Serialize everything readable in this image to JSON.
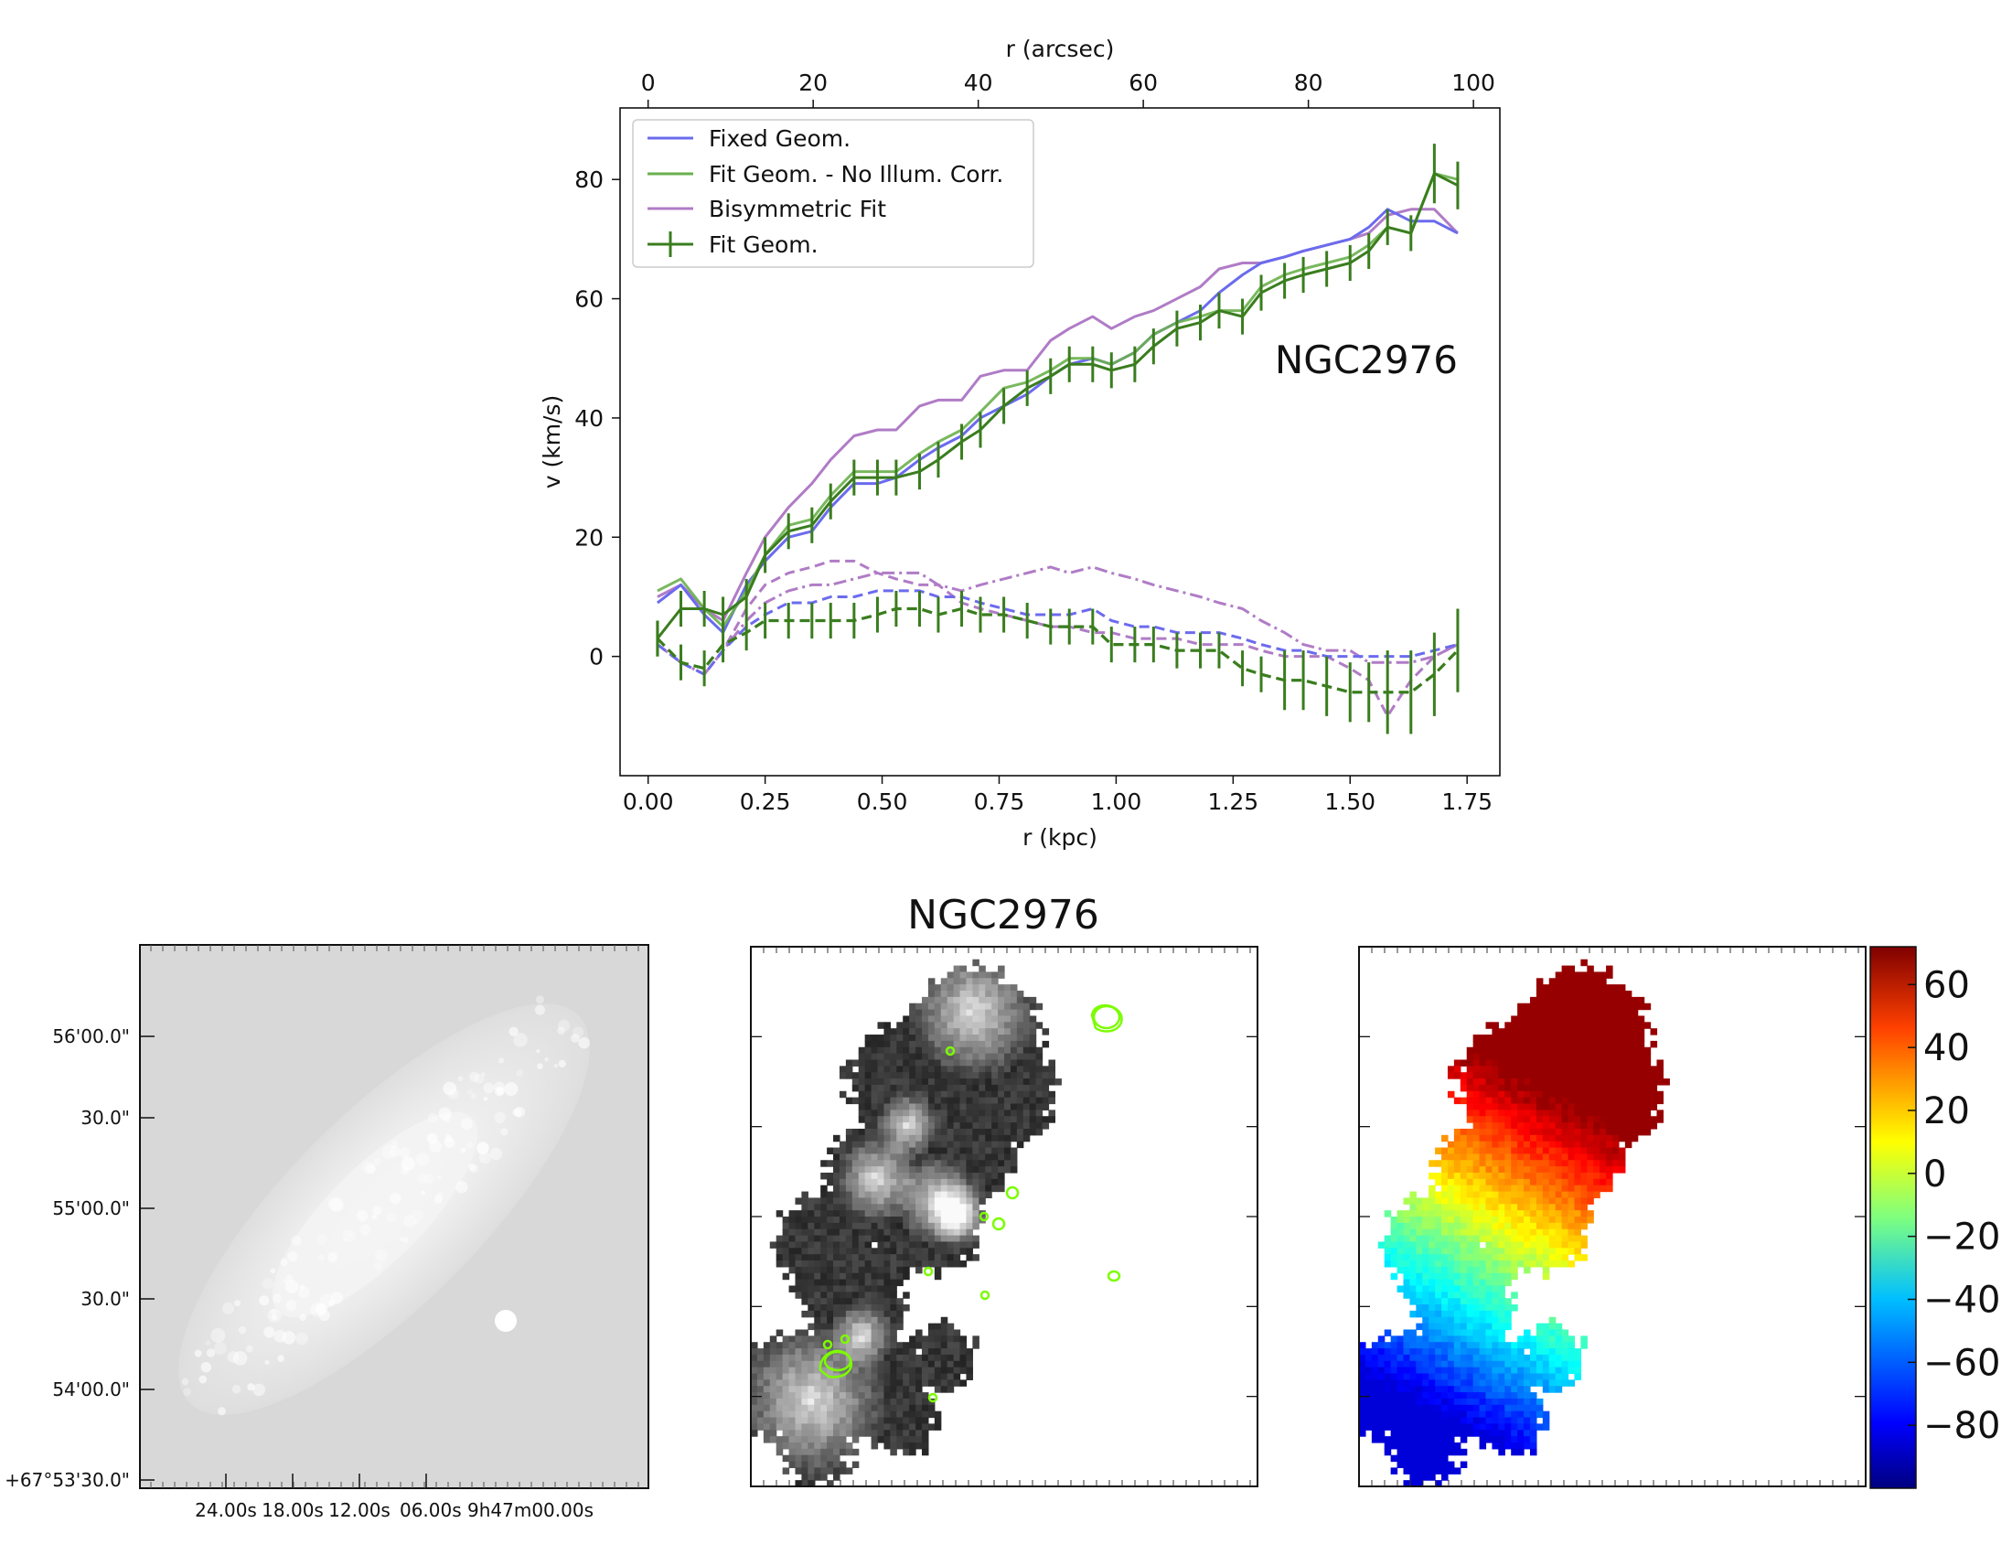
{
  "figure": {
    "galaxy_label": "NGC2976",
    "colors": {
      "fixed": "#6b6bee",
      "fit_noillum": "#6ab04c",
      "bisym": "#b07cc6",
      "fit": "#3a7d1e",
      "contour": "#7CFC00"
    }
  },
  "chart_data": [
    {
      "type": "line",
      "title": "NGC2976",
      "xlabel": "r (kpc)",
      "ylabel": "v (km/s)",
      "top_xlabel": "r (arcsec)",
      "xlim": [
        -0.06,
        1.82
      ],
      "ylim": [
        -20,
        92
      ],
      "top_xlim": [
        -3.4,
        103.2
      ],
      "xticks": [
        0.0,
        0.25,
        0.5,
        0.75,
        1.0,
        1.25,
        1.5,
        1.75
      ],
      "xtick_labels": [
        "0.00",
        "0.25",
        "0.50",
        "0.75",
        "1.00",
        "1.25",
        "1.50",
        "1.75"
      ],
      "yticks": [
        0,
        20,
        40,
        60,
        80
      ],
      "ytick_labels": [
        "0",
        "20",
        "40",
        "60",
        "80"
      ],
      "top_xticks": [
        0,
        20,
        40,
        60,
        80,
        100
      ],
      "top_xtick_labels": [
        "0",
        "20",
        "40",
        "60",
        "80",
        "100"
      ],
      "legend_position": "top-left",
      "legend": [
        "Fixed Geom.",
        "Fit Geom. - No Illum. Corr.",
        "Bisymmetric Fit",
        "Fit Geom."
      ],
      "series": [
        {
          "name": "Fixed Geom.",
          "style": "solid",
          "color_key": "fixed",
          "x": [
            0.02,
            0.07,
            0.12,
            0.16,
            0.21,
            0.25,
            0.3,
            0.35,
            0.39,
            0.44,
            0.49,
            0.53,
            0.58,
            0.62,
            0.67,
            0.71,
            0.76,
            0.81,
            0.86,
            0.9,
            0.95,
            0.99,
            1.04,
            1.08,
            1.13,
            1.18,
            1.22,
            1.27,
            1.31,
            1.36,
            1.4,
            1.45,
            1.5,
            1.54,
            1.58,
            1.63,
            1.68,
            1.73
          ],
          "values": [
            9,
            12,
            7,
            4,
            12,
            16,
            20,
            21,
            25,
            29,
            29,
            30,
            33,
            35,
            37,
            40,
            42,
            44,
            47,
            49,
            50,
            49,
            51,
            54,
            56,
            58,
            61,
            64,
            66,
            67,
            68,
            69,
            70,
            72,
            75,
            73,
            73,
            71
          ]
        },
        {
          "name": "Fit Geom. - No Illum. Corr.",
          "style": "solid",
          "color_key": "fit_noillum",
          "x": [
            0.02,
            0.07,
            0.12,
            0.16,
            0.21,
            0.25,
            0.3,
            0.35,
            0.39,
            0.44,
            0.49,
            0.53,
            0.58,
            0.62,
            0.67,
            0.71,
            0.76,
            0.81,
            0.86,
            0.9,
            0.95,
            0.99,
            1.04,
            1.08,
            1.13,
            1.18,
            1.22,
            1.27,
            1.31,
            1.36,
            1.4,
            1.45,
            1.5,
            1.54,
            1.58,
            1.63,
            1.68,
            1.73
          ],
          "values": [
            11,
            13,
            8,
            5,
            11,
            17,
            22,
            23,
            27,
            31,
            31,
            31,
            34,
            36,
            38,
            41,
            45,
            46,
            48,
            50,
            50,
            49,
            51,
            54,
            56,
            57,
            58,
            58,
            62,
            64,
            65,
            66,
            67,
            69,
            72,
            71,
            81,
            80
          ]
        },
        {
          "name": "Bisymmetric Fit",
          "style": "solid",
          "color_key": "bisym",
          "x": [
            0.02,
            0.07,
            0.12,
            0.16,
            0.21,
            0.25,
            0.3,
            0.35,
            0.39,
            0.44,
            0.49,
            0.53,
            0.58,
            0.62,
            0.67,
            0.71,
            0.76,
            0.81,
            0.86,
            0.9,
            0.95,
            0.99,
            1.04,
            1.08,
            1.13,
            1.18,
            1.22,
            1.27,
            1.31,
            1.36,
            1.4,
            1.45,
            1.5,
            1.54,
            1.58,
            1.63,
            1.68,
            1.73
          ],
          "values": [
            10,
            12,
            8,
            6,
            14,
            20,
            25,
            29,
            33,
            37,
            38,
            38,
            42,
            43,
            43,
            47,
            48,
            48,
            53,
            55,
            57,
            55,
            57,
            58,
            60,
            62,
            65,
            66,
            66,
            67,
            68,
            69,
            70,
            71,
            74,
            75,
            75,
            71
          ]
        },
        {
          "name": "Fit Geom.",
          "style": "errorbar",
          "color_key": "fit",
          "x": [
            0.02,
            0.07,
            0.12,
            0.16,
            0.21,
            0.25,
            0.3,
            0.35,
            0.39,
            0.44,
            0.49,
            0.53,
            0.58,
            0.62,
            0.67,
            0.71,
            0.76,
            0.81,
            0.86,
            0.9,
            0.95,
            0.99,
            1.04,
            1.08,
            1.13,
            1.18,
            1.22,
            1.27,
            1.31,
            1.36,
            1.4,
            1.45,
            1.5,
            1.54,
            1.58,
            1.63,
            1.68,
            1.73
          ],
          "values": [
            3,
            8,
            8,
            7,
            10,
            17,
            21,
            22,
            26,
            30,
            30,
            30,
            31,
            33,
            36,
            38,
            42,
            45,
            47,
            49,
            49,
            48,
            49,
            52,
            55,
            56,
            58,
            57,
            61,
            63,
            64,
            65,
            66,
            68,
            72,
            71,
            81,
            79
          ],
          "errors": [
            3,
            3,
            3,
            3,
            3,
            3,
            3,
            3,
            3,
            3,
            3,
            3,
            3,
            3,
            3,
            3,
            3,
            3,
            3,
            3,
            3,
            3,
            3,
            3,
            3,
            3,
            3,
            3,
            3,
            3,
            3,
            3,
            3,
            3,
            3,
            3,
            5,
            4
          ]
        },
        {
          "name": "Fixed Geom. (dashed)",
          "style": "dashed",
          "color_key": "fixed",
          "x": [
            0.02,
            0.07,
            0.12,
            0.16,
            0.21,
            0.25,
            0.3,
            0.35,
            0.39,
            0.44,
            0.49,
            0.53,
            0.58,
            0.62,
            0.67,
            0.71,
            0.76,
            0.81,
            0.86,
            0.9,
            0.95,
            0.99,
            1.04,
            1.08,
            1.13,
            1.18,
            1.22,
            1.27,
            1.31,
            1.36,
            1.4,
            1.45,
            1.5,
            1.54,
            1.58,
            1.63,
            1.68,
            1.73
          ],
          "values": [
            2,
            -1,
            -3,
            1,
            5,
            7,
            9,
            9,
            10,
            10,
            11,
            11,
            11,
            10,
            10,
            9,
            8,
            7,
            7,
            7,
            8,
            6,
            5,
            5,
            4,
            4,
            4,
            3,
            2,
            1,
            1,
            0,
            0,
            0,
            0,
            0,
            1,
            2
          ]
        },
        {
          "name": "Fit Geom. - No Illum. Corr. (dashed)",
          "style": "dashed",
          "color_key": "fit_noillum",
          "x": [
            0.02,
            0.07,
            0.12,
            0.16,
            0.21,
            0.25,
            0.3,
            0.35,
            0.39,
            0.44,
            0.49,
            0.53,
            0.58,
            0.62,
            0.67,
            0.71,
            0.76,
            0.81,
            0.86,
            0.9,
            0.95,
            0.99,
            1.04,
            1.08,
            1.13,
            1.18,
            1.22,
            1.27,
            1.31,
            1.36,
            1.4,
            1.45,
            1.5,
            1.54,
            1.58,
            1.63,
            1.68,
            1.73
          ],
          "values": [
            3,
            -1,
            -2,
            2,
            4,
            6,
            6,
            6,
            6,
            6,
            7,
            8,
            8,
            7,
            8,
            7,
            7,
            6,
            5,
            5,
            5,
            2,
            2,
            2,
            1,
            1,
            1,
            -2,
            -3,
            -4,
            -4,
            -5,
            -6,
            -6,
            -6,
            -6,
            -3,
            1
          ]
        },
        {
          "name": "Bisymmetric Fit (dashed)",
          "style": "dashed",
          "color_key": "bisym",
          "x": [
            0.02,
            0.07,
            0.12,
            0.16,
            0.21,
            0.25,
            0.3,
            0.35,
            0.39,
            0.44,
            0.49,
            0.53,
            0.58,
            0.62,
            0.67,
            0.71,
            0.76,
            0.81,
            0.86,
            0.9,
            0.95,
            0.99,
            1.04,
            1.08,
            1.13,
            1.18,
            1.22,
            1.27,
            1.31,
            1.36,
            1.4,
            1.45,
            1.5,
            1.54,
            1.58,
            1.63,
            1.68,
            1.73
          ],
          "values": [
            2,
            -1,
            -3,
            1,
            8,
            12,
            14,
            15,
            16,
            16,
            14,
            13,
            12,
            12,
            9,
            8,
            7,
            6,
            5,
            5,
            4,
            4,
            3,
            3,
            3,
            2,
            2,
            2,
            1,
            0,
            0,
            0,
            -2,
            -4,
            -10,
            -4,
            0,
            2
          ]
        },
        {
          "name": "Bisymmetric Fit (dash-dot)",
          "style": "dashdot",
          "color_key": "bisym",
          "x": [
            0.02,
            0.07,
            0.12,
            0.16,
            0.21,
            0.25,
            0.3,
            0.35,
            0.39,
            0.44,
            0.49,
            0.53,
            0.58,
            0.62,
            0.67,
            0.71,
            0.76,
            0.81,
            0.86,
            0.9,
            0.95,
            0.99,
            1.04,
            1.08,
            1.13,
            1.18,
            1.22,
            1.27,
            1.31,
            1.36,
            1.4,
            1.45,
            1.5,
            1.54,
            1.58,
            1.63,
            1.68,
            1.73
          ],
          "values": [
            2,
            -1,
            -3,
            1,
            6,
            9,
            11,
            12,
            12,
            13,
            14,
            14,
            14,
            12,
            11,
            12,
            13,
            14,
            15,
            14,
            15,
            14,
            13,
            12,
            11,
            10,
            9,
            8,
            6,
            4,
            2,
            1,
            1,
            -1,
            -1,
            -1,
            0,
            2
          ]
        }
      ]
    },
    {
      "type": "heatmap",
      "panel": "optical-image",
      "xtick_labels": [
        "24.00s",
        "18.00s",
        "12.00s",
        "06.00s 9h47m00.00s"
      ],
      "ytick_labels": [
        "56'00.0\"",
        "30.0\"",
        "55'00.0\"",
        "30.0\"",
        "54'00.0\"",
        "+67°53'30.0\""
      ]
    },
    {
      "type": "heatmap",
      "panel": "intensity-map",
      "title": "NGC2976"
    },
    {
      "type": "heatmap",
      "panel": "velocity-map",
      "colorbar_ticks": [
        60,
        40,
        20,
        0,
        -20,
        -40,
        -60,
        -80
      ],
      "colorbar_tick_labels": [
        "60",
        "40",
        "20",
        "0",
        "−20",
        "−40",
        "−60",
        "−80"
      ],
      "colorbar_range": [
        -100,
        72
      ]
    }
  ]
}
